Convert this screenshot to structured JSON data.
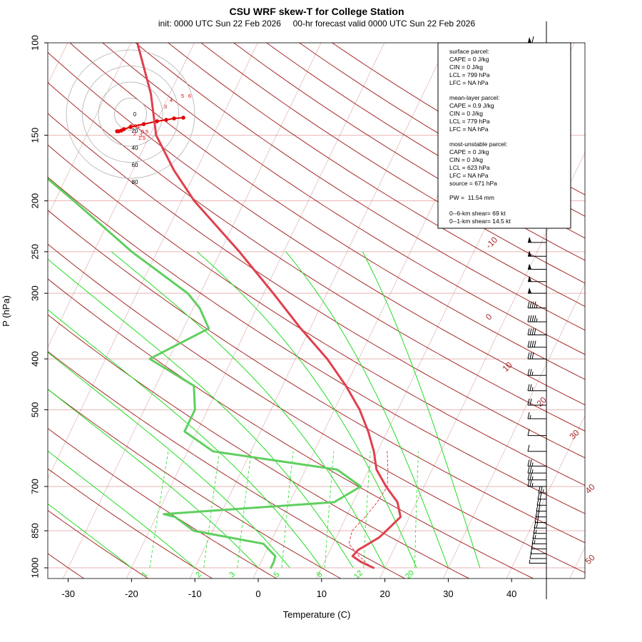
{
  "header": {
    "title": "CSU WRF skew-T for College Station",
    "subtitle": "init: 0000 UTC Sun 22 Feb 2026     00-hr forecast valid 0000 UTC Sun 22 Feb 2026"
  },
  "chart_data": {
    "type": "line",
    "title": "CSU WRF skew-T for College Station",
    "xlabel": "Temperature (C)",
    "ylabel": "P (hPa)",
    "xlim": [
      -33,
      51
    ],
    "ylim": [
      1000,
      100
    ],
    "pressure_ticks": [
      100,
      150,
      200,
      250,
      300,
      400,
      500,
      700,
      850,
      1000
    ],
    "temp_ticks": [
      -30,
      -20,
      -10,
      0,
      10,
      20,
      30,
      40
    ],
    "isotherm_labels": [
      "-10",
      "0",
      "10",
      "20",
      "30",
      "40",
      "50"
    ],
    "mixing_ratio_labels": [
      "1",
      "2",
      "3",
      "5",
      "8",
      "12",
      "20"
    ],
    "series": [
      {
        "name": "Temperature",
        "color": "#e0404e",
        "points": [
          [
            1000,
            18.2
          ],
          [
            975,
            15.8
          ],
          [
            950,
            14.0
          ],
          [
            925,
            14.4
          ],
          [
            900,
            15.6
          ],
          [
            875,
            16.8
          ],
          [
            850,
            17.4
          ],
          [
            800,
            18.6
          ],
          [
            750,
            17.0
          ],
          [
            700,
            14.0
          ],
          [
            650,
            11.2
          ],
          [
            600,
            9.4
          ],
          [
            550,
            7.0
          ],
          [
            500,
            4.0
          ],
          [
            450,
            0.0
          ],
          [
            400,
            -5.0
          ],
          [
            350,
            -11.5
          ],
          [
            300,
            -18.5
          ],
          [
            250,
            -27.0
          ],
          [
            200,
            -38.0
          ],
          [
            175,
            -43.5
          ],
          [
            150,
            -49.0
          ],
          [
            125,
            -53.0
          ],
          [
            100,
            -59.0
          ]
        ]
      },
      {
        "name": "Dewpoint",
        "color": "#5fcf5f",
        "points": [
          [
            1000,
            2.0
          ],
          [
            975,
            2.0
          ],
          [
            950,
            1.8
          ],
          [
            900,
            -1.0
          ],
          [
            850,
            -13.0
          ],
          [
            800,
            -17.0
          ],
          [
            790,
            -19.0
          ],
          [
            750,
            7.0
          ],
          [
            700,
            10.0
          ],
          [
            650,
            5.0
          ],
          [
            600,
            -16.0
          ],
          [
            550,
            -22.0
          ],
          [
            500,
            -22.0
          ],
          [
            450,
            -24.0
          ],
          [
            400,
            -33.0
          ],
          [
            350,
            -26.0
          ],
          [
            320,
            -29.0
          ],
          [
            300,
            -32.0
          ],
          [
            250,
            -44.0
          ],
          [
            200,
            -57.0
          ],
          [
            175,
            -65.0
          ]
        ]
      },
      {
        "name": "Parcel",
        "color": "#e0404e",
        "dashed": true,
        "points": [
          [
            1000,
            18.0
          ],
          [
            950,
            15.0
          ],
          [
            900,
            12.5
          ],
          [
            850,
            12.0
          ],
          [
            800,
            13.0
          ],
          [
            750,
            13.8
          ],
          [
            700,
            14.2
          ],
          [
            650,
            13.0
          ],
          [
            600,
            11.5
          ]
        ]
      }
    ],
    "wind_barbs_kt": [
      {
        "p": 100,
        "spd": 60
      },
      {
        "p": 110,
        "spd": 58
      },
      {
        "p": 120,
        "spd": 62
      },
      {
        "p": 130,
        "spd": 65
      },
      {
        "p": 140,
        "spd": 65
      },
      {
        "p": 150,
        "spd": 65
      },
      {
        "p": 160,
        "spd": 60
      },
      {
        "p": 170,
        "spd": 58
      },
      {
        "p": 180,
        "spd": 55
      },
      {
        "p": 190,
        "spd": 60
      },
      {
        "p": 200,
        "spd": 55
      },
      {
        "p": 210,
        "spd": 55
      },
      {
        "p": 225,
        "spd": 55
      },
      {
        "p": 240,
        "spd": 50
      },
      {
        "p": 255,
        "spd": 50
      },
      {
        "p": 270,
        "spd": 50
      },
      {
        "p": 285,
        "spd": 50
      },
      {
        "p": 300,
        "spd": 50
      },
      {
        "p": 320,
        "spd": 45
      },
      {
        "p": 340,
        "spd": 45
      },
      {
        "p": 360,
        "spd": 40
      },
      {
        "p": 380,
        "spd": 40
      },
      {
        "p": 400,
        "spd": 30
      },
      {
        "p": 430,
        "spd": 25
      },
      {
        "p": 460,
        "spd": 25
      },
      {
        "p": 490,
        "spd": 20
      },
      {
        "p": 520,
        "spd": 15
      },
      {
        "p": 560,
        "spd": 10
      },
      {
        "p": 600,
        "spd": 10
      },
      {
        "p": 640,
        "spd": 25
      },
      {
        "p": 660,
        "spd": 25
      },
      {
        "p": 680,
        "spd": 25
      },
      {
        "p": 700,
        "spd": 25
      },
      {
        "p": 720,
        "spd": 25
      },
      {
        "p": 740,
        "spd": 20
      },
      {
        "p": 760,
        "spd": 20
      },
      {
        "p": 780,
        "spd": 20
      },
      {
        "p": 800,
        "spd": 20
      },
      {
        "p": 820,
        "spd": 20
      },
      {
        "p": 840,
        "spd": 20
      },
      {
        "p": 860,
        "spd": 15
      },
      {
        "p": 880,
        "spd": 15
      },
      {
        "p": 900,
        "spd": 15
      },
      {
        "p": 920,
        "spd": 10
      },
      {
        "p": 940,
        "spd": 10
      },
      {
        "p": 960,
        "spd": 10
      },
      {
        "p": 980,
        "spd": 5
      }
    ],
    "hodograph": {
      "ring_labels": [
        "0",
        "20",
        "40",
        "60",
        "80"
      ],
      "points": [
        [
          -0.2,
          14.0
        ],
        [
          1,
          14
        ],
        [
          3,
          15
        ],
        [
          5,
          17
        ],
        [
          10,
          20
        ],
        [
          20,
          24
        ],
        [
          30,
          28
        ],
        [
          37,
          30
        ],
        [
          43,
          32
        ],
        [
          50,
          33
        ]
      ],
      "height_labels": [
        "3",
        "4",
        "5",
        "6",
        "0.01",
        "0.5",
        "1",
        "1.5",
        "2"
      ]
    }
  },
  "legend": {
    "surface_title": "surface parcel:",
    "surface_cape": "CAPE = 0 J/kg",
    "surface_cin": "CIN = 0 J/kg",
    "surface_lcl": "LCL = 799 hPa",
    "surface_lfc": "LFC = NA hPa",
    "ml_title": "mean-layer parcel:",
    "ml_cape": "CAPE = 0.9 J/kg",
    "ml_cin": "CIN = 0 J/kg",
    "ml_lcl": "LCL = 779 hPa",
    "ml_lfc": "LFC = NA hPa",
    "mu_title": "most-unstable parcel:",
    "mu_cape": "CAPE = 0 J/kg",
    "mu_cin": "CIN = 0 J/kg",
    "mu_lcl": "LCL = 623 hPa",
    "mu_lfc": "LFC = NA hPa",
    "mu_source": "source = 671 hPa",
    "pw": "PW =  11.54 mm",
    "shear6": "0--6-km shear= 69 kt",
    "shear1": "0--1-km shear= 14.5 kt"
  },
  "colors": {
    "isotherm": "#a52a2a",
    "isobar": "#e8b4b4",
    "dry_adiabat": "#a52a2a",
    "moist_adiabat": "#22dd22",
    "mixing_ratio": "#22dd22",
    "temperature": "#e0404e",
    "dewpoint": "#5fcf5f",
    "hodograph": "#e00000"
  }
}
